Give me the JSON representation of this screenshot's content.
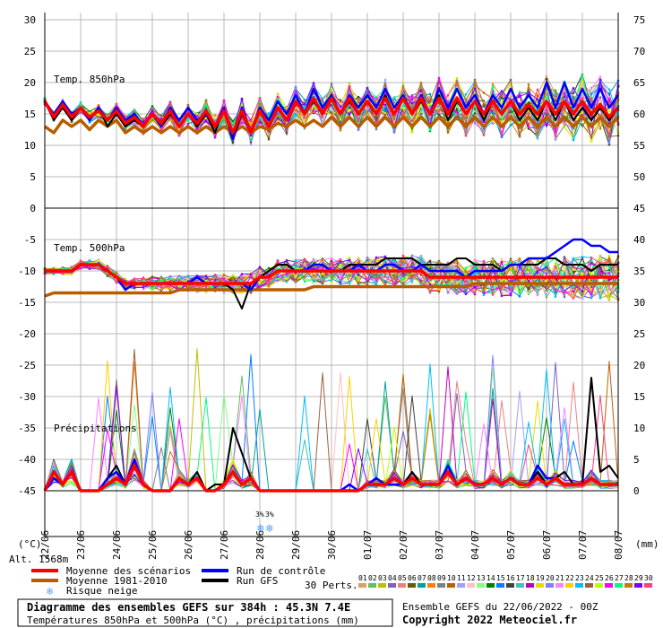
{
  "chart_data": {
    "type": "line",
    "title": "Diagramme des ensembles GEFS sur 384h : 45.3N 7.4E",
    "subtitle": "Températures 850hPa et 500hPa (°C) , précipitations (mm)",
    "run_info": "Ensemble GEFS du 22/06/2022 - 00Z",
    "copyright": "Copyright 2022 Meteociel.fr",
    "altitude": "Alt. 1568m",
    "left_unit": "(°C)",
    "right_unit": "(mm)",
    "y_left_ticks": [
      30,
      25,
      20,
      15,
      10,
      5,
      0,
      -5,
      -10,
      -15,
      -20,
      -25,
      -30,
      -35,
      -40,
      -45
    ],
    "y_right_ticks": [
      75,
      70,
      65,
      60,
      55,
      50,
      45,
      40,
      35,
      30,
      25,
      20,
      15,
      10,
      5,
      0
    ],
    "ylim": [
      -45,
      30
    ],
    "x_dates": [
      "22/06",
      "23/06",
      "24/06",
      "25/06",
      "26/06",
      "27/06",
      "28/06",
      "29/06",
      "30/06",
      "01/07",
      "02/07",
      "03/07",
      "04/07",
      "05/07",
      "06/07",
      "07/07",
      "08/07"
    ],
    "panel_labels": {
      "t850": "Temp. 850hPa",
      "t500": "Temp. 500hPa",
      "precip": "Précipitations"
    },
    "snow_marks": [
      "3%",
      "3%"
    ],
    "series": [
      {
        "name": "Moyenne des scénarios",
        "color": "#ff0000",
        "t850": [
          17,
          14.5,
          16.5,
          14.5,
          16,
          14.5,
          15.5,
          14,
          15.5,
          13.5,
          14.5,
          13,
          15,
          13.5,
          15.5,
          13,
          15,
          13.5,
          15.5,
          13,
          15.5,
          12,
          15.5,
          12,
          15.5,
          13,
          16,
          14,
          17,
          15,
          17.5,
          15,
          17.5,
          15,
          17.5,
          15,
          17,
          15,
          17.5,
          15,
          17.5,
          15,
          17.5,
          15,
          17.5,
          15,
          17.5,
          15,
          17,
          15,
          17,
          15,
          17,
          15,
          16.5,
          15,
          17,
          15,
          17,
          15,
          17,
          15,
          16.5,
          14.5,
          16
        ],
        "t500": [
          -10,
          -10,
          -10,
          -10,
          -9,
          -9,
          -9,
          -10,
          -11,
          -12,
          -12,
          -12,
          -12,
          -12,
          -12,
          -12,
          -12,
          -12,
          -12,
          -12,
          -12,
          -12,
          -12,
          -12,
          -11,
          -11,
          -10,
          -10,
          -10,
          -10,
          -10,
          -10,
          -10,
          -10,
          -10,
          -10,
          -10,
          -10,
          -10,
          -10,
          -10,
          -10,
          -10,
          -11,
          -11,
          -11,
          -11,
          -11,
          -11,
          -11,
          -11,
          -11,
          -11,
          -11,
          -11,
          -11,
          -11,
          -11,
          -11,
          -11,
          -11,
          -11,
          -11,
          -11,
          -11
        ],
        "precip": [
          0,
          3,
          1,
          3,
          0,
          0,
          0,
          1,
          2,
          1,
          4,
          1,
          0,
          0,
          0,
          2,
          1,
          2,
          0,
          0,
          1,
          3,
          1,
          2,
          0,
          0,
          0,
          0,
          0,
          0,
          0,
          0,
          0,
          0,
          0,
          0,
          1,
          1,
          1,
          2,
          1,
          2,
          1,
          1,
          1,
          3,
          1,
          2,
          1,
          1,
          2,
          1,
          2,
          1,
          1,
          2,
          1,
          2,
          1,
          1,
          1,
          2,
          1,
          1,
          1
        ]
      },
      {
        "name": "Moyenne 1981-2010",
        "color": "#b85c00",
        "t850": [
          13,
          12,
          14,
          13,
          14,
          12.5,
          14,
          13,
          14,
          12,
          13,
          12,
          13,
          12,
          13,
          12,
          13,
          12,
          13,
          12,
          13,
          12,
          13,
          12,
          13,
          12.5,
          13.5,
          13,
          14,
          13,
          14,
          13,
          14.5,
          13,
          14.5,
          13,
          14.5,
          13,
          14.5,
          13,
          14.5,
          13,
          14.5,
          13,
          14.5,
          13,
          14.5,
          13,
          14.5,
          13,
          14.5,
          13,
          14.5,
          13,
          14.5,
          13,
          14.5,
          13,
          14.5,
          13,
          14.5,
          13,
          14.5,
          13,
          14.5
        ],
        "t500": [
          -14,
          -13.5,
          -13.5,
          -13.5,
          -13.5,
          -13.5,
          -13.5,
          -13.5,
          -13.5,
          -13.5,
          -13.5,
          -13.5,
          -13.5,
          -13.5,
          -13.5,
          -13,
          -13,
          -13,
          -13,
          -13,
          -13,
          -13,
          -13,
          -13,
          -13,
          -13,
          -13,
          -13,
          -13,
          -13,
          -12.5,
          -12.5,
          -12.5,
          -12.5,
          -12.5,
          -12.5,
          -12.5,
          -12.5,
          -12.5,
          -12.5,
          -12.5,
          -12.5,
          -12.5,
          -12.5,
          -12.5,
          -12.5,
          -12.5,
          -12.5,
          -12,
          -12,
          -12,
          -12,
          -12,
          -12,
          -12,
          -12,
          -12,
          -12,
          -12,
          -12,
          -12,
          -12,
          -12,
          -12,
          -12
        ]
      },
      {
        "name": "Run de contrôle",
        "color": "#0000ff",
        "t850": [
          17,
          15,
          17,
          15,
          16,
          14,
          16,
          14,
          16,
          14,
          15,
          13,
          15,
          13,
          16,
          14,
          16,
          14,
          15,
          13,
          16,
          11,
          16,
          12,
          16,
          14,
          17,
          15,
          18,
          15,
          19,
          16,
          18,
          15,
          18,
          16,
          18,
          16,
          19,
          16,
          18,
          15,
          18,
          15,
          19,
          16,
          19,
          16,
          18,
          15,
          18,
          16,
          19,
          16,
          18,
          16,
          20,
          16,
          20,
          16,
          19,
          16,
          19,
          16,
          18
        ],
        "t500": [
          -10,
          -10,
          -10,
          -10,
          -9,
          -9,
          -9,
          -10,
          -11,
          -13,
          -12,
          -12,
          -12,
          -12,
          -12,
          -12,
          -12,
          -11,
          -12,
          -12,
          -12,
          -12,
          -12,
          -13,
          -11,
          -11,
          -10,
          -10,
          -10,
          -10,
          -9,
          -9,
          -10,
          -10,
          -10,
          -9,
          -10,
          -10,
          -9,
          -9,
          -10,
          -10,
          -9,
          -10,
          -10,
          -10,
          -10,
          -11,
          -10,
          -10,
          -10,
          -10,
          -9,
          -9,
          -8,
          -8,
          -8,
          -7,
          -6,
          -5,
          -5,
          -6,
          -6,
          -7,
          -7
        ],
        "precip": [
          0,
          2,
          1,
          3,
          0,
          0,
          0,
          2,
          3,
          1,
          5,
          1,
          0,
          0,
          0,
          2,
          1,
          2,
          0,
          0,
          1,
          3,
          1,
          2,
          0,
          0,
          0,
          0,
          0,
          0,
          0,
          0,
          0,
          0,
          1,
          0,
          1,
          2,
          1,
          1,
          1,
          2,
          1,
          1,
          1,
          4,
          1,
          2,
          1,
          1,
          2,
          1,
          2,
          1,
          1,
          4,
          2,
          2,
          1,
          1,
          1,
          2,
          1,
          1,
          1
        ]
      },
      {
        "name": "Run GFS",
        "color": "#000000",
        "t850": [
          17,
          14,
          16,
          14,
          16,
          14,
          16,
          13,
          15,
          13,
          14,
          13,
          15,
          13,
          15,
          13,
          15,
          13,
          15,
          12,
          16,
          11,
          15,
          12,
          16,
          13,
          16,
          14,
          17,
          15,
          17,
          15,
          18,
          15,
          17,
          15,
          17,
          15,
          18,
          15,
          18,
          15,
          17,
          15,
          18,
          14,
          17,
          15,
          17,
          14,
          17,
          15,
          17,
          14,
          16,
          14,
          17,
          14,
          17,
          14,
          16,
          14,
          16,
          14,
          16
        ],
        "t500": [
          -10,
          -10,
          -10,
          -10,
          -9,
          -9,
          -9,
          -10,
          -11,
          -12,
          -12,
          -12,
          -12,
          -12,
          -12,
          -12,
          -12,
          -12,
          -12,
          -12,
          -12,
          -13,
          -16,
          -12,
          -11,
          -10,
          -9,
          -9,
          -10,
          -10,
          -10,
          -10,
          -10,
          -10,
          -9,
          -9,
          -9,
          -9,
          -8,
          -8,
          -8,
          -8,
          -9,
          -9,
          -9,
          -9,
          -8,
          -8,
          -9,
          -9,
          -9,
          -10,
          -9,
          -9,
          -9,
          -9,
          -8,
          -8,
          -9,
          -9,
          -9,
          -10,
          -9,
          -9,
          -9
        ],
        "precip": [
          0,
          2,
          1,
          3,
          0,
          0,
          0,
          2,
          4,
          1,
          5,
          1,
          0,
          0,
          0,
          2,
          1,
          3,
          0,
          1,
          1,
          10,
          6,
          2,
          0,
          0,
          0,
          0,
          0,
          0,
          0,
          0,
          0,
          0,
          0,
          0,
          1,
          2,
          1,
          2,
          1,
          3,
          1,
          1,
          1,
          4,
          1,
          2,
          1,
          1,
          2,
          1,
          2,
          1,
          1,
          3,
          1,
          2,
          3,
          1,
          1,
          18,
          3,
          4,
          2
        ]
      }
    ],
    "perturbations": {
      "label": "30 Perts.",
      "ids": [
        "01",
        "02",
        "03",
        "04",
        "05",
        "06",
        "07",
        "08",
        "09",
        "10",
        "11",
        "12",
        "13",
        "14",
        "15",
        "16",
        "17",
        "18",
        "19",
        "20",
        "21",
        "22",
        "23",
        "24",
        "25",
        "26",
        "27",
        "28",
        "29",
        "30"
      ],
      "colors": [
        "#e0a060",
        "#60c060",
        "#c0c000",
        "#8060c0",
        "#f08080",
        "#606000",
        "#00a0a0",
        "#ff8000",
        "#808080",
        "#c06000",
        "#a0a0ff",
        "#ffc0c0",
        "#80ff80",
        "#008000",
        "#0080ff",
        "#404040",
        "#40c0c0",
        "#c000c0",
        "#e0e000",
        "#8080ff",
        "#ff80ff",
        "#ffd000",
        "#00c0ff",
        "#a06040",
        "#c0ff00",
        "#ff00ff",
        "#00ff80",
        "#c08000",
        "#8000ff",
        "#ff4080"
      ]
    }
  },
  "legend": {
    "mean": "Moyenne des scénarios",
    "clim": "Moyenne 1981-2010",
    "snow": "Risque neige",
    "control": "Run de contrôle",
    "gfs": "Run GFS"
  }
}
